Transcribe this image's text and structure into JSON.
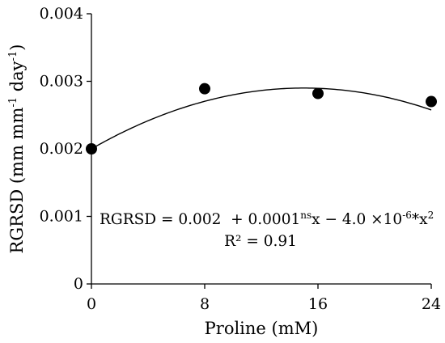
{
  "chart_data": {
    "type": "scatter",
    "xlabel": "Proline (mM)",
    "ylabel": "RGRSD (mm mm-1 day-1)",
    "ylabel_parts": {
      "main": "RGRSD (mm mm",
      "sup1": "-1",
      "mid": " day",
      "sup2": "-1",
      "end": ")"
    },
    "x_ticks": [
      "0",
      "8",
      "16",
      "24"
    ],
    "y_ticks": [
      "0",
      "0.001",
      "0.002",
      "0.003",
      "0.004"
    ],
    "xlim": [
      0,
      24
    ],
    "ylim": [
      0,
      0.004
    ],
    "points": [
      {
        "x": 0,
        "y": 0.002
      },
      {
        "x": 8,
        "y": 0.00289
      },
      {
        "x": 16,
        "y": 0.00282
      },
      {
        "x": 24,
        "y": 0.0027
      }
    ],
    "fit": {
      "type": "quadratic",
      "coefficients": {
        "a": 0.002,
        "b": 0.0001,
        "c": -4e-06
      },
      "equation": "RGRSD = 0.002 + 0.0001nsx − 4.0 ×10-6*x2",
      "equation_parts": {
        "lhs": "RGRSD = 0.002  + 0.0001",
        "sup_ns": "ns",
        "mid": "x − 4.0 ×10",
        "sup_exp": "-6",
        "star": "*",
        "x": "x",
        "sup_sq": "2"
      },
      "r2_label": "R² = 0.91"
    },
    "grid": false,
    "legend": "none"
  }
}
